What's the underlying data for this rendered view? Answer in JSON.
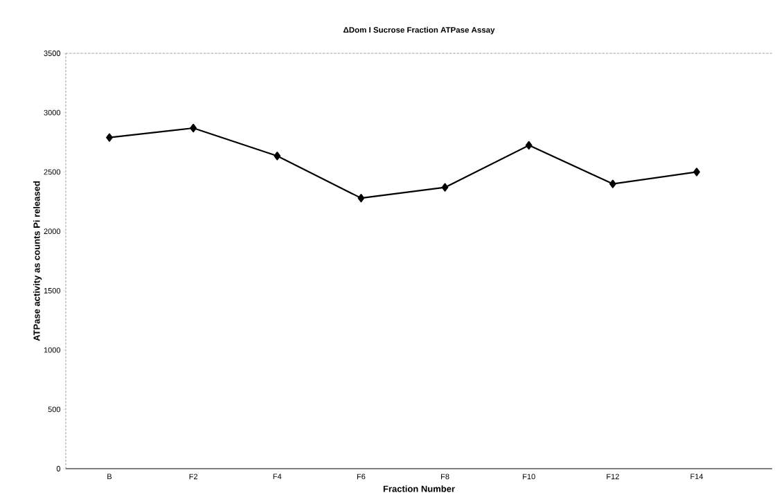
{
  "chart_data": {
    "type": "line",
    "title": "ΔDom I Sucrose Fraction ATPase Assay",
    "xlabel": "Fraction Number",
    "ylabel": "ATPase activity as counts Pi released",
    "categories": [
      "B",
      "F2",
      "F4",
      "F6",
      "F8",
      "F10",
      "F12",
      "F14"
    ],
    "series": [
      {
        "color": "#000000",
        "values": [
          2790,
          2870,
          2635,
          2280,
          2370,
          2725,
          2400,
          2500
        ]
      }
    ],
    "ylim": [
      0,
      3500
    ],
    "yticks": [
      0,
      500,
      1000,
      1500,
      2000,
      2500,
      3000,
      3500
    ],
    "marker": "diamond",
    "line_style": "solid"
  }
}
